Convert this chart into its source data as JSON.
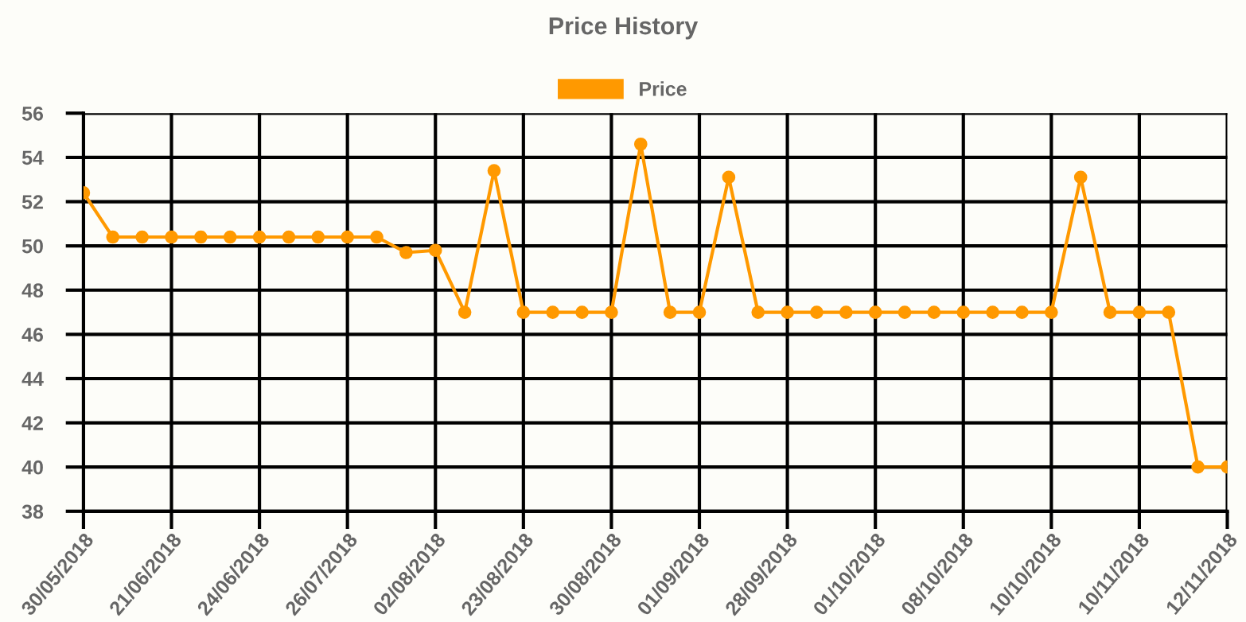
{
  "chart_data": {
    "type": "line",
    "title": "Price History",
    "categories": [
      "30/05/2018",
      null,
      null,
      "21/06/2018",
      null,
      null,
      "24/06/2018",
      null,
      null,
      "26/07/2018",
      null,
      null,
      "02/08/2018",
      null,
      null,
      "23/08/2018",
      null,
      null,
      "30/08/2018",
      null,
      null,
      "01/09/2018",
      null,
      null,
      "28/09/2018",
      null,
      null,
      "01/10/2018",
      null,
      null,
      "08/10/2018",
      null,
      null,
      "10/10/2018",
      null,
      null,
      "10/11/2018",
      null,
      null,
      "12/11/2018"
    ],
    "series": [
      {
        "name": "Price",
        "color": "#ff9900",
        "values": [
          52.4,
          50.4,
          50.4,
          50.4,
          50.4,
          50.4,
          50.4,
          50.4,
          50.4,
          50.4,
          50.4,
          49.7,
          49.8,
          47,
          53.4,
          47,
          47,
          47,
          47,
          54.6,
          47,
          47,
          53.1,
          47,
          47,
          47,
          47,
          47,
          47,
          47,
          47,
          47,
          47,
          47,
          53.1,
          47,
          47,
          47,
          40,
          40
        ]
      }
    ],
    "ylim": [
      38,
      56
    ],
    "yticks": [
      38,
      40,
      42,
      44,
      46,
      48,
      50,
      52,
      54,
      56
    ],
    "grid": true,
    "legend": "top",
    "marker": "circle",
    "line_style": "solid"
  }
}
